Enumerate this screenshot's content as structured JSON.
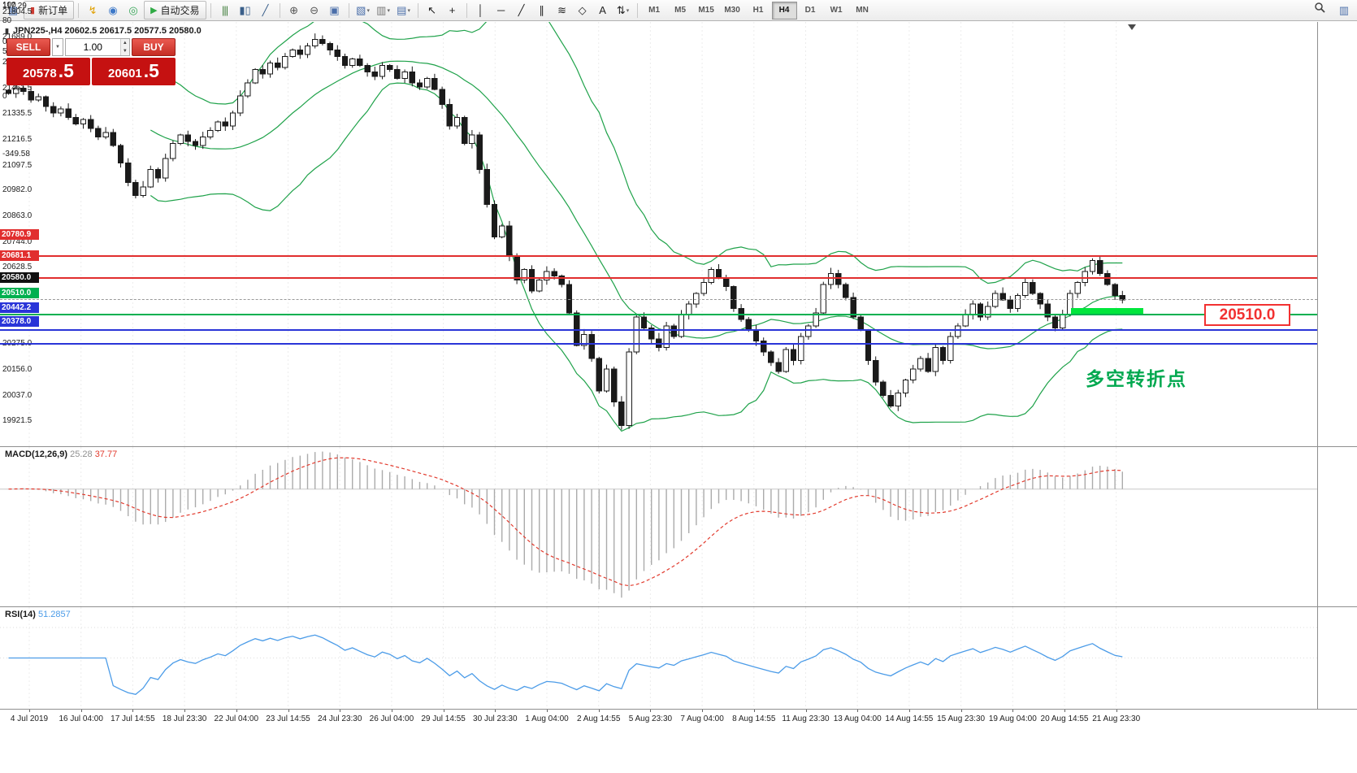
{
  "toolbar": {
    "new_order_label": "新订单",
    "auto_trading_label": "自动交易",
    "timeframes": [
      "M1",
      "M5",
      "M15",
      "M30",
      "H1",
      "H4",
      "D1",
      "W1",
      "MN"
    ],
    "active_timeframe": "H4",
    "items": [
      {
        "type": "icon",
        "name": "charts-icon",
        "glyph": "▦",
        "color": "#4a6ea9"
      },
      {
        "type": "button",
        "name": "new-order-button",
        "label_key": "new_order_label",
        "icon_name": "candle-icon",
        "icon_glyph": "▮",
        "icon_color": "#cc3b32"
      },
      {
        "type": "sep"
      },
      {
        "type": "icon",
        "name": "lightning-icon",
        "glyph": "↯",
        "color": "#e0a000"
      },
      {
        "type": "icon",
        "name": "accounts-icon",
        "glyph": "◉",
        "color": "#3c78c8"
      },
      {
        "type": "icon",
        "name": "community-icon",
        "glyph": "◎",
        "color": "#35a556"
      },
      {
        "type": "button",
        "name": "auto-trading-button",
        "label_key": "auto_trading_label",
        "icon_name": "play-icon",
        "icon_glyph": "▶",
        "icon_color": "#2faa44"
      },
      {
        "type": "sep"
      },
      {
        "type": "icon",
        "name": "bars-chart-icon",
        "glyph": "|||",
        "color": "#3f7d3a"
      },
      {
        "type": "icon",
        "name": "candles-chart-icon",
        "glyph": "▮▯",
        "color": "#3a5f8a"
      },
      {
        "type": "icon",
        "name": "line-chart-icon",
        "glyph": "╱",
        "color": "#3a5f8a"
      },
      {
        "type": "sep"
      },
      {
        "type": "icon",
        "name": "zoom-in-icon",
        "glyph": "⊕",
        "color": "#555555"
      },
      {
        "type": "icon",
        "name": "zoom-out-icon",
        "glyph": "⊖",
        "color": "#555555"
      },
      {
        "type": "icon",
        "name": "tile-windows-icon",
        "glyph": "▣",
        "color": "#4a6ea9"
      },
      {
        "type": "sep"
      },
      {
        "type": "icon",
        "name": "new-chart-icon",
        "glyph": "▧",
        "color": "#4a6ea9",
        "dropdown": true
      },
      {
        "type": "icon",
        "name": "profiles-icon",
        "glyph": "▥",
        "color": "#777777",
        "dropdown": true
      },
      {
        "type": "icon",
        "name": "indicators-icon",
        "glyph": "▤",
        "color": "#4a6ea9",
        "dropdown": true
      },
      {
        "type": "sep"
      },
      {
        "type": "icon",
        "name": "cursor-icon",
        "glyph": "↖",
        "color": "#222222"
      },
      {
        "type": "icon",
        "name": "crosshair-icon",
        "glyph": "+",
        "color": "#222222"
      },
      {
        "type": "sep"
      },
      {
        "type": "icon",
        "name": "vertical-line-icon",
        "glyph": "│",
        "color": "#222222"
      },
      {
        "type": "icon",
        "name": "horizontal-line-icon",
        "glyph": "─",
        "color": "#222222"
      },
      {
        "type": "icon",
        "name": "trendline-icon",
        "glyph": "╱",
        "color": "#222222"
      },
      {
        "type": "icon",
        "name": "channel-icon",
        "glyph": "∥",
        "color": "#222222"
      },
      {
        "type": "icon",
        "name": "fibonacci-icon",
        "glyph": "≋",
        "color": "#222222"
      },
      {
        "type": "icon",
        "name": "shapes-icon",
        "glyph": "◇",
        "color": "#222222"
      },
      {
        "type": "icon",
        "name": "text-icon",
        "glyph": "A",
        "color": "#222222"
      },
      {
        "type": "icon",
        "name": "arrows-icon",
        "glyph": "⇅",
        "color": "#222222",
        "dropdown": true
      },
      {
        "type": "sep"
      },
      {
        "type": "timeframes"
      }
    ]
  },
  "chart": {
    "title_text": "JPN225-,H4  20602.5 20617.5 20577.5 20580.0",
    "band_color": "#1fa24a"
  },
  "trade_panel": {
    "sell_label": "SELL",
    "buy_label": "BUY",
    "volume": "1.00",
    "sell_price_main": "20578",
    "sell_price_pip": ".5",
    "buy_price_main": "20601",
    "buy_price_pip": ".5"
  },
  "price_axis": {
    "regular": [
      "21804.5",
      "21689.0",
      "21570.0",
      "21451.5",
      "21335.5",
      "21216.5",
      "21097.5",
      "20982.0",
      "20863.0",
      "20744.0",
      "20628.5",
      "20275.0",
      "20156.0",
      "20037.0",
      "19921.5"
    ],
    "badges": [
      {
        "value": "20780.9",
        "bg": "#e12e2e"
      },
      {
        "value": "20681.1",
        "bg": "#e12e2e"
      },
      {
        "value": "20580.0",
        "bg": "#111111"
      },
      {
        "value": "20510.0",
        "bg": "#00b050"
      },
      {
        "value": "20442.2",
        "bg": "#2a35d8"
      },
      {
        "value": "20378.0",
        "bg": "#2a35d8"
      }
    ]
  },
  "lines": [
    {
      "price": 20780.9,
      "color": "#e12e2e",
      "width": 1.5,
      "style": "solid"
    },
    {
      "price": 20681.1,
      "color": "#e12e2e",
      "width": 1.5,
      "style": "solid"
    },
    {
      "price": 20580.0,
      "color": "#999999",
      "width": 1,
      "style": "dashed"
    },
    {
      "price": 20510.0,
      "color": "#00b050",
      "width": 2,
      "style": "solid"
    },
    {
      "price": 20442.2,
      "color": "#2a35d8",
      "width": 2,
      "style": "solid"
    },
    {
      "price": 20378.0,
      "color": "#2a35d8",
      "width": 2,
      "style": "solid"
    }
  ],
  "annotations": {
    "price_box_text": "20510.0",
    "turning_point_text": "多空转折点"
  },
  "time_axis": {
    "labels": [
      "4 Jul 2019",
      "16 Jul 04:00",
      "17 Jul 14:55",
      "18 Jul 23:30",
      "22 Jul 04:00",
      "23 Jul 14:55",
      "24 Jul 23:30",
      "26 Jul 04:00",
      "29 Jul 14:55",
      "30 Jul 23:30",
      "1 Aug 04:00",
      "2 Aug 14:55",
      "5 Aug 23:30",
      "7 Aug 04:00",
      "8 Aug 14:55",
      "11 Aug 23:30",
      "13 Aug 04:00",
      "14 Aug 14:55",
      "15 Aug 23:30",
      "19 Aug 04:00",
      "20 Aug 14:55",
      "21 Aug 23:30"
    ]
  },
  "macd": {
    "title": "MACD(12,26,9)",
    "value_main": "25.28",
    "value_signal": "37.77",
    "axis_labels": [
      "117.29",
      "0.00",
      "-349.58"
    ],
    "histogram_color": "#ababab",
    "signal_color": "#e23b2e"
  },
  "rsi": {
    "title": "RSI(14)",
    "value": "51.2857",
    "axis_labels": [
      "100",
      "80",
      "50",
      "0"
    ],
    "line_color": "#4c9ce8"
  },
  "chart_data": {
    "type": "candlestick",
    "symbol": "JPN225-",
    "timeframe": "H4",
    "current_bar": {
      "open": 20602.5,
      "high": 20617.5,
      "low": 20577.5,
      "close": 20580.0
    },
    "price_top": 21860,
    "price_bottom": 19905,
    "bollinger_period": 20,
    "bollinger_dev": 2,
    "closes": [
      21530,
      21555,
      21540,
      21500,
      21515,
      21470,
      21440,
      21460,
      21420,
      21390,
      21410,
      21370,
      21330,
      21350,
      21290,
      21210,
      21120,
      21060,
      21100,
      21180,
      21140,
      21230,
      21300,
      21340,
      21310,
      21290,
      21330,
      21360,
      21400,
      21380,
      21440,
      21520,
      21580,
      21640,
      21620,
      21670,
      21650,
      21700,
      21730,
      21710,
      21750,
      21780,
      21760,
      21730,
      21700,
      21660,
      21690,
      21660,
      21630,
      21610,
      21660,
      21640,
      21600,
      21630,
      21580,
      21560,
      21600,
      21550,
      21480,
      21380,
      21420,
      21300,
      21340,
      21180,
      21020,
      20870,
      20920,
      20780,
      20670,
      20720,
      20620,
      20670,
      20710,
      20690,
      20650,
      20520,
      20370,
      20420,
      20310,
      20160,
      20260,
      20110,
      20000,
      20340,
      20500,
      20450,
      20400,
      20360,
      20460,
      20410,
      20510,
      20560,
      20610,
      20660,
      20720,
      20680,
      20640,
      20540,
      20490,
      20440,
      20390,
      20340,
      20290,
      20250,
      20350,
      20300,
      20410,
      20460,
      20520,
      20650,
      20700,
      20650,
      20590,
      20500,
      20440,
      20300,
      20200,
      20140,
      20090,
      20150,
      20210,
      20260,
      20310,
      20250,
      20360,
      20300,
      20410,
      20460,
      20510,
      20560,
      20500,
      20550,
      20610,
      20580,
      20540,
      20600,
      20660,
      20610,
      20560,
      20500,
      20450,
      20510,
      20610,
      20660,
      20710,
      20760,
      20700,
      20650,
      20600,
      20580
    ]
  }
}
